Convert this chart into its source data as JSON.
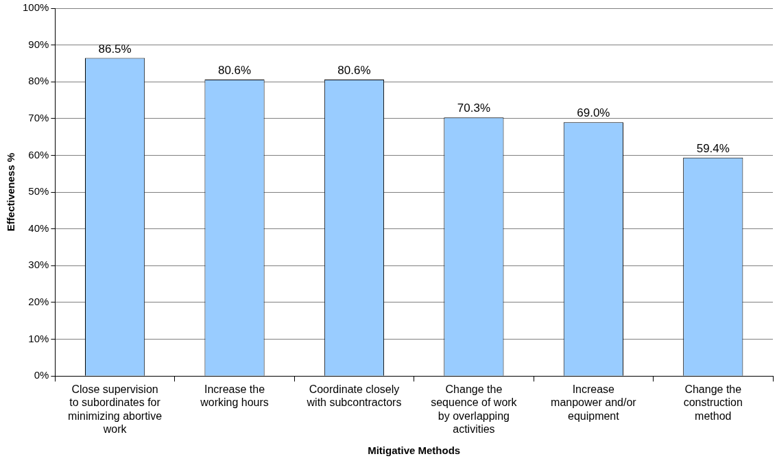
{
  "chart_data": {
    "type": "bar",
    "xlabel": "Mitigative Methods",
    "ylabel": "Effectiveness %",
    "categories": [
      "Close supervision to subordinates for minimizing abortive work",
      "Increase the working hours",
      "Coordinate closely with subcontractors",
      "Change the sequence of work by overlapping activities",
      "Increase manpower and/or equipment",
      "Change the construction method"
    ],
    "values": [
      86.5,
      80.6,
      80.6,
      70.3,
      69.0,
      59.4
    ],
    "value_labels": [
      "86.5%",
      "80.6%",
      "80.6%",
      "70.3%",
      "69.0%",
      "59.4%"
    ],
    "color": "#99ccff",
    "ylim": [
      0,
      100
    ],
    "yticks": [
      {
        "value": 0,
        "label": "0%"
      },
      {
        "value": 10,
        "label": "10%"
      },
      {
        "value": 20,
        "label": "20%"
      },
      {
        "value": 30,
        "label": "30%"
      },
      {
        "value": 40,
        "label": "40%"
      },
      {
        "value": 50,
        "label": "50%"
      },
      {
        "value": 60,
        "label": "60%"
      },
      {
        "value": 70,
        "label": "70%"
      },
      {
        "value": 80,
        "label": "80%"
      },
      {
        "value": 90,
        "label": "90%"
      },
      {
        "value": 100,
        "label": "100%"
      }
    ],
    "grid": "y",
    "legend": false
  }
}
